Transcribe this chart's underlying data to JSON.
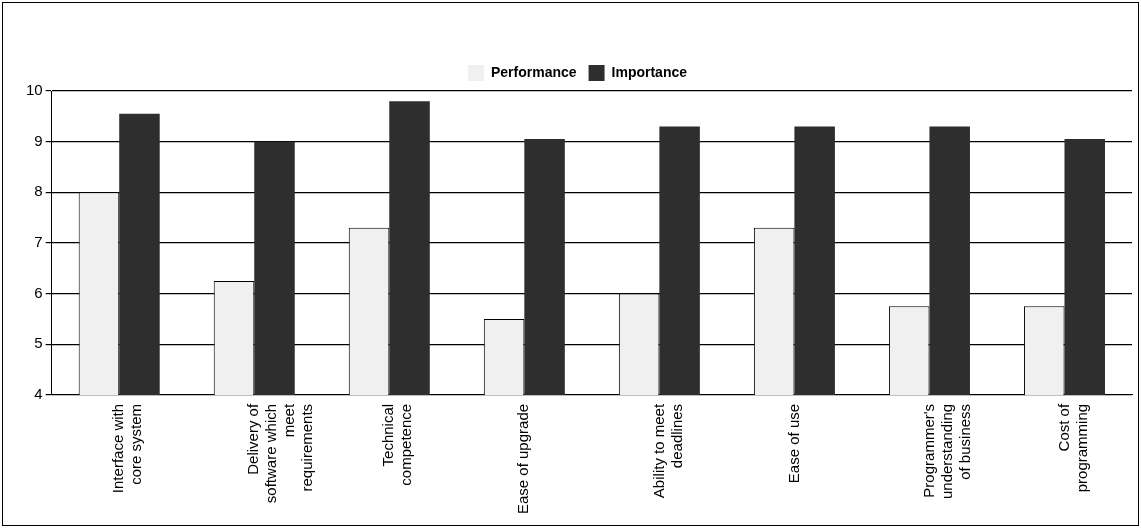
{
  "chart_data": {
    "type": "bar",
    "categories": [
      "Interface with core system",
      "Delivery of software which meet requirements",
      "Technical competence",
      "Ease of upgrade",
      "Ability to meet deadlines",
      "Ease of use",
      "Programmer's understanding of business",
      "Cost of programming"
    ],
    "series": [
      {
        "name": "Performance",
        "color": "#f0f0f0",
        "values": [
          8.0,
          6.25,
          7.3,
          5.5,
          6.0,
          7.3,
          5.75,
          5.75
        ]
      },
      {
        "name": "Importance",
        "color": "#2e2e2e",
        "values": [
          9.55,
          9.0,
          9.8,
          9.05,
          9.3,
          9.3,
          9.3,
          9.05
        ]
      }
    ],
    "ylim": [
      4,
      10
    ],
    "yticks": [
      4,
      5,
      6,
      7,
      8,
      9,
      10
    ],
    "grid": "y",
    "legend": "top"
  }
}
